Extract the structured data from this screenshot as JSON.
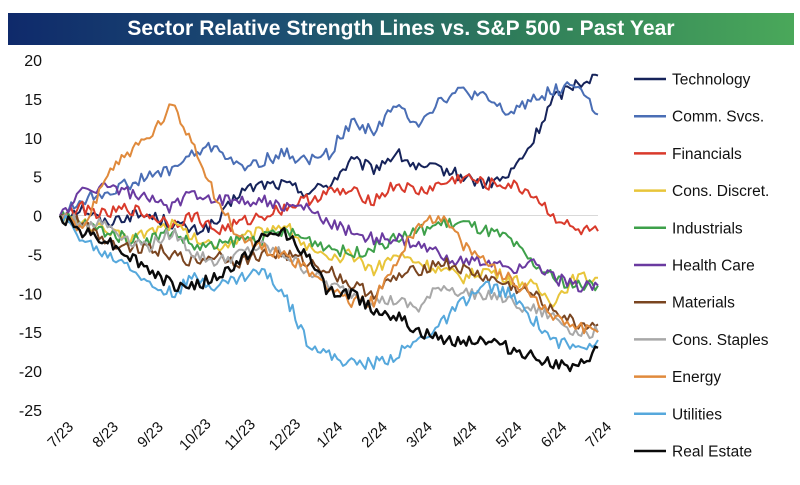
{
  "chart_data": {
    "type": "line",
    "title": "Sector Relative Strength Lines vs. S&P 500 - Past Year",
    "xlabel": "",
    "ylabel": "",
    "ylim": [
      -25,
      20
    ],
    "yticks": [
      "20",
      "15",
      "10",
      "5",
      "0",
      "-5",
      "-10",
      "-15",
      "-20",
      "-25"
    ],
    "ytick_values": [
      20,
      15,
      10,
      5,
      0,
      -5,
      -10,
      -15,
      -20,
      -25
    ],
    "x_tick_labels": [
      "7/23",
      "8/23",
      "9/23",
      "10/23",
      "11/23",
      "12/23",
      "1/24",
      "2/24",
      "3/24",
      "4/24",
      "5/24",
      "6/24",
      "7/24"
    ],
    "x_points_per_month": 2,
    "grid": false,
    "zero_line": true,
    "legend_position": "right",
    "series": [
      {
        "name": "Technology",
        "color": "#16235a",
        "values": [
          0,
          1,
          -1,
          0,
          0,
          -1,
          -2,
          -1,
          3,
          4,
          4,
          3,
          4,
          7,
          6,
          8,
          6,
          6,
          5,
          4,
          5,
          9,
          15,
          17,
          18
        ]
      },
      {
        "name": "Comm. Svcs.",
        "color": "#4a6eb5",
        "values": [
          0,
          2,
          3,
          4,
          5,
          6,
          8,
          9,
          6,
          7,
          8,
          7,
          8,
          12,
          11,
          14,
          12,
          15,
          16,
          15,
          13,
          15,
          16,
          17,
          13
        ]
      },
      {
        "name": "Financials",
        "color": "#d93a2b",
        "values": [
          0,
          1,
          0,
          1,
          0,
          -1,
          0,
          -2,
          -1,
          0,
          1,
          2,
          3,
          3,
          2,
          4,
          3,
          4,
          5,
          4,
          4,
          3,
          0,
          -2,
          -2
        ]
      },
      {
        "name": "Cons. Discret.",
        "color": "#e8c53a",
        "values": [
          0,
          -1,
          -2,
          -3,
          -2,
          -1,
          -3,
          -4,
          -3,
          -2,
          -1,
          -4,
          -6,
          -5,
          -7,
          -5,
          -6,
          -7,
          -8,
          -7,
          -8,
          -9,
          -11,
          -8,
          -8
        ]
      },
      {
        "name": "Industrials",
        "color": "#3ea04a",
        "values": [
          0,
          -1,
          -2,
          -3,
          -3,
          -2,
          -4,
          -4,
          -3,
          -3,
          -2,
          -3,
          -4,
          -5,
          -4,
          -3,
          -2,
          -1,
          -1,
          -2,
          -3,
          -6,
          -8,
          -9,
          -9
        ]
      },
      {
        "name": "Health Care",
        "color": "#6a3aa0",
        "values": [
          0,
          3,
          4,
          3,
          2,
          1,
          3,
          2,
          2,
          2,
          1,
          1,
          -1,
          -2,
          -3,
          -3,
          -4,
          -5,
          -6,
          -6,
          -7,
          -6,
          -8,
          -9,
          -9
        ]
      },
      {
        "name": "Materials",
        "color": "#7a4520",
        "values": [
          0,
          -1,
          -3,
          -4,
          -4,
          -5,
          -6,
          -5,
          -6,
          -5,
          -5,
          -6,
          -7,
          -9,
          -10,
          -8,
          -7,
          -6,
          -7,
          -8,
          -9,
          -10,
          -12,
          -14,
          -14
        ]
      },
      {
        "name": "Cons. Staples",
        "color": "#a8a8a8",
        "values": [
          0,
          -1,
          -1,
          -3,
          -4,
          -2,
          -5,
          -6,
          -5,
          -4,
          -5,
          -7,
          -9,
          -10,
          -11,
          -11,
          -12,
          -9,
          -10,
          -10,
          -11,
          -12,
          -13,
          -15,
          -15
        ]
      },
      {
        "name": "Energy",
        "color": "#e08a3c",
        "values": [
          0,
          -2,
          5,
          8,
          10,
          14,
          9,
          2,
          -3,
          -4,
          -5,
          -7,
          -9,
          -11,
          -11,
          -6,
          -1,
          0,
          -4,
          -6,
          -8,
          -10,
          -13,
          -14,
          -15
        ]
      },
      {
        "name": "Utilities",
        "color": "#56a8dc",
        "values": [
          0,
          -3,
          -5,
          -6,
          -9,
          -10,
          -8,
          -9,
          -8,
          -7,
          -10,
          -16,
          -18,
          -19,
          -19,
          -18,
          -16,
          -14,
          -11,
          -9,
          -10,
          -13,
          -16,
          -17,
          -16
        ]
      },
      {
        "name": "Real Estate",
        "color": "#0a0a0a",
        "values": [
          0,
          -2,
          -3,
          -5,
          -7,
          -9,
          -9,
          -8,
          -6,
          -3,
          -2,
          -5,
          -10,
          -10,
          -12,
          -13,
          -15,
          -16,
          -16,
          -16,
          -17,
          -18,
          -19,
          -20,
          -17
        ]
      }
    ]
  }
}
